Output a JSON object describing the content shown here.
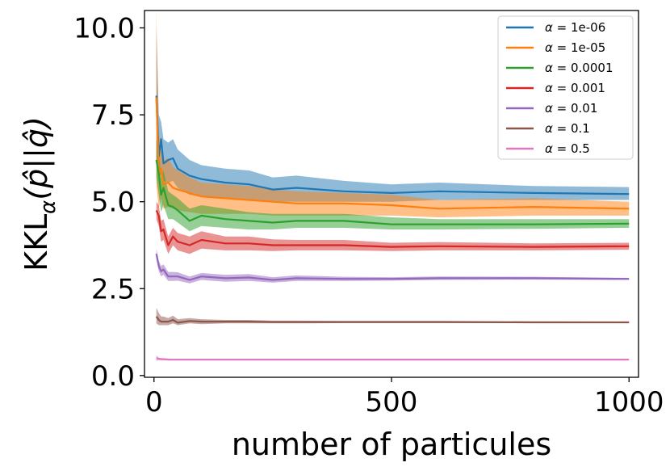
{
  "chart_data": {
    "type": "line",
    "xlabel": "number of particules",
    "ylabel_main": "KKL",
    "ylabel_sub": "α",
    "ylabel_rest": "(p̂||q̂)",
    "xlim": [
      -20,
      1020
    ],
    "ylim": [
      -0.05,
      10.5
    ],
    "xticks": [
      0,
      500,
      1000
    ],
    "xtick_labels": [
      "0",
      "500",
      "1000"
    ],
    "yticks": [
      0.0,
      2.5,
      5.0,
      7.5,
      10.0
    ],
    "ytick_labels": [
      "0.0",
      "2.5",
      "5.0",
      "7.5",
      "10.0"
    ],
    "legend_position": "top-right",
    "series": [
      {
        "name": "α = 1e-06",
        "alpha_symbol": "α =",
        "alpha_value": "1e-06",
        "color": "#1f77b4",
        "x": [
          5,
          10,
          15,
          20,
          30,
          40,
          50,
          75,
          100,
          150,
          200,
          250,
          300,
          400,
          500,
          600,
          800,
          1000
        ],
        "y": [
          8.05,
          6.3,
          6.8,
          6.1,
          6.2,
          6.25,
          5.95,
          5.75,
          5.65,
          5.55,
          5.5,
          5.35,
          5.4,
          5.3,
          5.25,
          5.3,
          5.25,
          5.22
        ],
        "lower": [
          6.2,
          5.7,
          5.8,
          5.6,
          5.55,
          5.6,
          5.4,
          5.2,
          5.15,
          5.1,
          5.05,
          5.0,
          5.0,
          5.0,
          5.0,
          5.05,
          5.05,
          5.05
        ],
        "upper": [
          10.0,
          7.5,
          7.3,
          6.8,
          6.7,
          6.8,
          6.5,
          6.2,
          6.05,
          5.95,
          5.9,
          5.7,
          5.75,
          5.6,
          5.5,
          5.55,
          5.45,
          5.42
        ]
      },
      {
        "name": "α = 1e-05",
        "alpha_symbol": "α =",
        "alpha_value": "1e-05",
        "color": "#ff7f0e",
        "x": [
          5,
          10,
          15,
          20,
          30,
          40,
          50,
          75,
          100,
          150,
          200,
          250,
          300,
          400,
          500,
          600,
          800,
          1000
        ],
        "y": [
          8.0,
          5.8,
          5.95,
          5.5,
          5.55,
          5.4,
          5.35,
          5.25,
          5.15,
          5.1,
          5.05,
          5.0,
          4.95,
          4.95,
          4.9,
          4.8,
          4.85,
          4.8
        ],
        "lower": [
          5.5,
          4.8,
          5.1,
          4.8,
          4.85,
          4.8,
          4.75,
          4.7,
          4.65,
          4.65,
          4.65,
          4.6,
          4.6,
          4.6,
          4.6,
          4.55,
          4.6,
          4.6
        ],
        "upper": [
          10.5,
          6.9,
          6.7,
          6.2,
          6.25,
          6.0,
          5.9,
          5.7,
          5.55,
          5.5,
          5.45,
          5.35,
          5.3,
          5.25,
          5.2,
          5.05,
          5.1,
          5.0
        ]
      },
      {
        "name": "α = 0.0001",
        "alpha_symbol": "α =",
        "alpha_value": "0.0001",
        "color": "#2ca02c",
        "x": [
          5,
          10,
          15,
          20,
          30,
          40,
          50,
          75,
          100,
          150,
          200,
          250,
          300,
          400,
          500,
          600,
          800,
          1000
        ],
        "y": [
          6.2,
          5.8,
          5.2,
          5.4,
          4.9,
          4.85,
          4.75,
          4.45,
          4.6,
          4.5,
          4.45,
          4.4,
          4.45,
          4.45,
          4.35,
          4.35,
          4.35,
          4.37
        ],
        "lower": [
          5.7,
          5.2,
          4.7,
          4.9,
          4.5,
          4.5,
          4.4,
          4.15,
          4.3,
          4.25,
          4.2,
          4.2,
          4.25,
          4.25,
          4.2,
          4.2,
          4.22,
          4.25
        ],
        "upper": [
          6.8,
          6.4,
          5.7,
          5.9,
          5.3,
          5.2,
          5.1,
          4.8,
          4.9,
          4.8,
          4.7,
          4.65,
          4.65,
          4.65,
          4.55,
          4.5,
          4.5,
          4.5
        ]
      },
      {
        "name": "α = 0.001",
        "alpha_symbol": "α =",
        "alpha_value": "0.001",
        "color": "#d62728",
        "x": [
          5,
          10,
          15,
          20,
          30,
          40,
          50,
          75,
          100,
          150,
          200,
          250,
          300,
          400,
          500,
          600,
          800,
          1000
        ],
        "y": [
          4.75,
          4.6,
          4.15,
          4.2,
          3.75,
          4.0,
          3.85,
          3.75,
          3.9,
          3.8,
          3.8,
          3.75,
          3.75,
          3.75,
          3.7,
          3.72,
          3.7,
          3.72
        ],
        "lower": [
          4.5,
          4.3,
          3.85,
          3.9,
          3.5,
          3.75,
          3.6,
          3.5,
          3.65,
          3.6,
          3.6,
          3.58,
          3.6,
          3.6,
          3.58,
          3.6,
          3.6,
          3.62
        ],
        "upper": [
          5.0,
          4.9,
          4.45,
          4.5,
          4.0,
          4.25,
          4.1,
          4.0,
          4.15,
          4.0,
          4.0,
          3.92,
          3.9,
          3.9,
          3.82,
          3.84,
          3.8,
          3.82
        ]
      },
      {
        "name": "α = 0.01",
        "alpha_symbol": "α =",
        "alpha_value": "0.01",
        "color": "#9467bd",
        "x": [
          5,
          10,
          15,
          20,
          30,
          40,
          50,
          75,
          100,
          150,
          200,
          250,
          300,
          400,
          500,
          600,
          800,
          1000
        ],
        "y": [
          3.5,
          3.15,
          3.0,
          3.05,
          2.85,
          2.85,
          2.85,
          2.75,
          2.85,
          2.8,
          2.82,
          2.75,
          2.8,
          2.78,
          2.78,
          2.8,
          2.8,
          2.78
        ],
        "lower": [
          3.35,
          3.0,
          2.85,
          2.9,
          2.72,
          2.72,
          2.73,
          2.65,
          2.75,
          2.7,
          2.72,
          2.67,
          2.72,
          2.72,
          2.73,
          2.75,
          2.76,
          2.75
        ],
        "upper": [
          3.65,
          3.3,
          3.15,
          3.2,
          2.98,
          2.98,
          2.97,
          2.85,
          2.95,
          2.9,
          2.92,
          2.83,
          2.88,
          2.84,
          2.83,
          2.85,
          2.84,
          2.81
        ]
      },
      {
        "name": "α = 0.1",
        "alpha_symbol": "α =",
        "alpha_value": "0.1",
        "color": "#8c564b",
        "x": [
          5,
          10,
          15,
          20,
          30,
          40,
          50,
          75,
          100,
          150,
          200,
          250,
          300,
          400,
          500,
          600,
          800,
          1000
        ],
        "y": [
          1.7,
          1.6,
          1.55,
          1.55,
          1.55,
          1.6,
          1.52,
          1.57,
          1.55,
          1.55,
          1.55,
          1.54,
          1.54,
          1.54,
          1.54,
          1.54,
          1.53,
          1.53
        ],
        "lower": [
          1.5,
          1.45,
          1.45,
          1.45,
          1.45,
          1.5,
          1.45,
          1.5,
          1.48,
          1.5,
          1.5,
          1.5,
          1.5,
          1.51,
          1.51,
          1.51,
          1.51,
          1.51
        ],
        "upper": [
          1.95,
          1.8,
          1.7,
          1.7,
          1.65,
          1.72,
          1.62,
          1.65,
          1.62,
          1.6,
          1.6,
          1.58,
          1.58,
          1.57,
          1.57,
          1.57,
          1.56,
          1.55
        ]
      },
      {
        "name": "α = 0.5",
        "alpha_symbol": "α =",
        "alpha_value": "0.5",
        "color": "#e377c2",
        "x": [
          5,
          10,
          15,
          20,
          30,
          40,
          50,
          75,
          100,
          150,
          200,
          250,
          300,
          400,
          500,
          600,
          800,
          1000
        ],
        "y": [
          0.5,
          0.48,
          0.47,
          0.47,
          0.46,
          0.46,
          0.46,
          0.46,
          0.46,
          0.46,
          0.46,
          0.46,
          0.46,
          0.46,
          0.46,
          0.46,
          0.46,
          0.46
        ],
        "lower": [
          0.42,
          0.44,
          0.44,
          0.44,
          0.44,
          0.44,
          0.45,
          0.45,
          0.45,
          0.45,
          0.45,
          0.45,
          0.45,
          0.45,
          0.45,
          0.45,
          0.45,
          0.45
        ],
        "upper": [
          0.58,
          0.52,
          0.5,
          0.5,
          0.49,
          0.48,
          0.47,
          0.47,
          0.47,
          0.47,
          0.47,
          0.47,
          0.47,
          0.47,
          0.47,
          0.47,
          0.47,
          0.47
        ]
      }
    ]
  }
}
